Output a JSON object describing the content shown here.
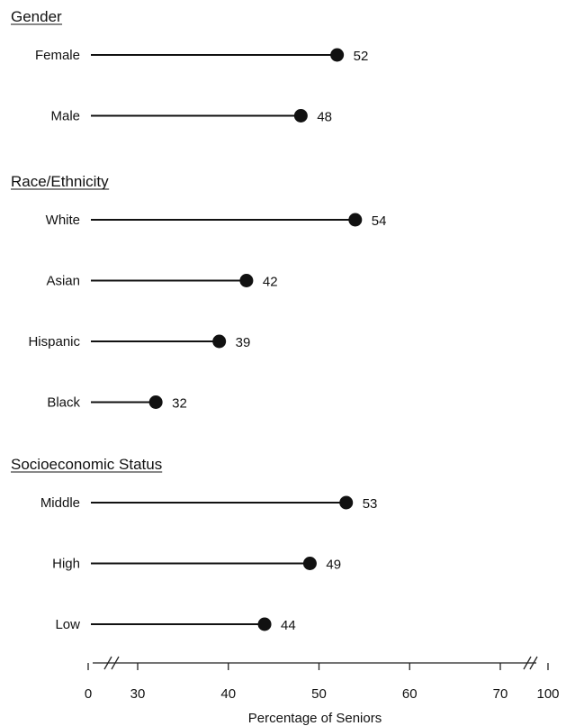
{
  "chart_data": {
    "type": "dot",
    "title": "",
    "xlabel": "Percentage of Seniors",
    "ylabel": "",
    "x_ticks": [
      0,
      30,
      40,
      50,
      60,
      70,
      100
    ],
    "x_break_ranges": [
      [
        0,
        30
      ],
      [
        70,
        100
      ]
    ],
    "xlim": [
      0,
      100
    ],
    "grid": false,
    "legend": "none",
    "groups": [
      {
        "title": "Gender",
        "items": [
          {
            "label": "Female",
            "value": 52
          },
          {
            "label": "Male",
            "value": 48
          }
        ]
      },
      {
        "title": "Race/Ethnicity",
        "items": [
          {
            "label": "White",
            "value": 54
          },
          {
            "label": "Asian",
            "value": 42
          },
          {
            "label": "Hispanic",
            "value": 39
          },
          {
            "label": "Black",
            "value": 32
          }
        ]
      },
      {
        "title": "Socioeconomic Status",
        "items": [
          {
            "label": "Middle",
            "value": 53
          },
          {
            "label": "High",
            "value": 49
          },
          {
            "label": "Low",
            "value": 44
          }
        ]
      }
    ]
  }
}
